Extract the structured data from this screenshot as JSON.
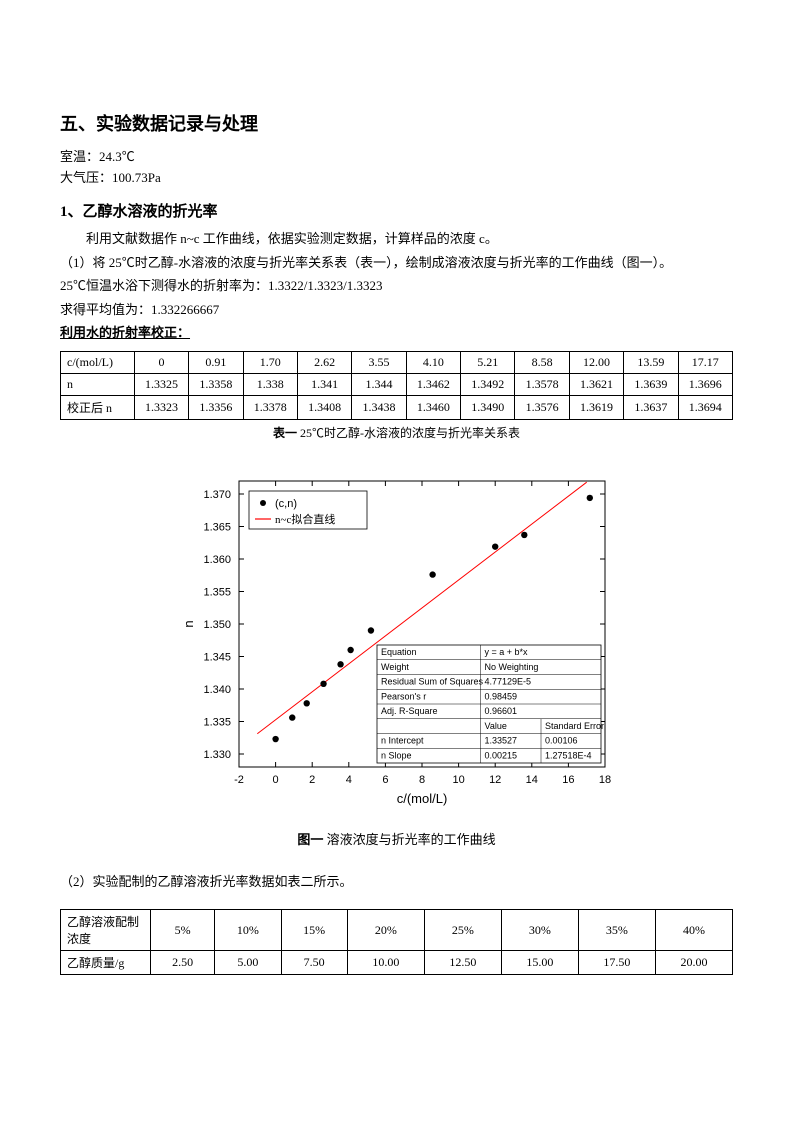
{
  "section_title": "五、实验数据记录与处理",
  "meta": {
    "room_temp_label": "室温：24.3℃",
    "pressure_label": "大气压：100.73Pa"
  },
  "sub1_title": "1、乙醇水溶液的折光率",
  "para1": "利用文献数据作 n~c 工作曲线，依据实验测定数据，计算样品的浓度 c。",
  "para2": "（1）将 25℃时乙醇-水溶液的浓度与折光率关系表（表一），绘制成溶液浓度与折光率的工作曲线（图一）。",
  "para3": "25℃恒温水浴下测得水的折射率为：1.3322/1.3323/1.3323",
  "para4": "求得平均值为：1.332266667",
  "para5": "利用水的折射率校正：",
  "table1": {
    "headers": [
      "c/(mol/L)",
      "0",
      "0.91",
      "1.70",
      "2.62",
      "3.55",
      "4.10",
      "5.21",
      "8.58",
      "12.00",
      "13.59",
      "17.17"
    ],
    "rows": [
      [
        "n",
        "1.3325",
        "1.3358",
        "1.338",
        "1.341",
        "1.344",
        "1.3462",
        "1.3492",
        "1.3578",
        "1.3621",
        "1.3639",
        "1.3696"
      ],
      [
        "校正后 n",
        "1.3323",
        "1.3356",
        "1.3378",
        "1.3408",
        "1.3438",
        "1.3460",
        "1.3490",
        "1.3576",
        "1.3619",
        "1.3637",
        "1.3694"
      ]
    ],
    "caption_bold": "表一",
    "caption_rest": " 25℃时乙醇-水溶液的浓度与折光率关系表"
  },
  "chart": {
    "type": "scatter",
    "x": [
      0,
      0.91,
      1.7,
      2.62,
      3.55,
      4.1,
      5.21,
      8.58,
      12.0,
      13.59,
      17.17
    ],
    "y": [
      1.3323,
      1.3356,
      1.3378,
      1.3408,
      1.3438,
      1.346,
      1.349,
      1.3576,
      1.3619,
      1.3637,
      1.3694
    ],
    "xlim": [
      -2,
      18
    ],
    "ylim": [
      1.328,
      1.372
    ],
    "xticks": [
      -2,
      0,
      2,
      4,
      6,
      8,
      10,
      12,
      14,
      16,
      18
    ],
    "yticks": [
      1.33,
      1.335,
      1.34,
      1.345,
      1.35,
      1.355,
      1.36,
      1.365,
      1.37
    ],
    "xlabel": "c/(mol/L)",
    "ylabel": "n",
    "marker_color": "#000000",
    "marker_size": 3.2,
    "line_color": "#ff0000",
    "fit_intercept": 1.33527,
    "fit_slope": 0.00215,
    "background_color": "#ffffff",
    "tick_fontsize": 11,
    "label_fontsize": 13,
    "legend": {
      "items": [
        {
          "marker": "dot",
          "label": "(c,n)"
        },
        {
          "marker": "line",
          "label": "n~c拟合直线",
          "color": "#ff0000"
        }
      ]
    },
    "stats_box": {
      "rows": [
        [
          "Equation",
          "y = a + b*x",
          ""
        ],
        [
          "Weight",
          "No Weighting",
          ""
        ],
        [
          "Residual Sum of Squares",
          "4.77129E-5",
          ""
        ],
        [
          "Pearson's r",
          "0.98459",
          ""
        ],
        [
          "Adj. R-Square",
          "0.96601",
          ""
        ],
        [
          "",
          "Value",
          "Standard Error"
        ],
        [
          "n     Intercept",
          "1.33527",
          "0.00106"
        ],
        [
          "n     Slope",
          "0.00215",
          "1.27518E-4"
        ]
      ]
    }
  },
  "fig1_caption_bold": "图一",
  "fig1_caption_rest": " 溶液浓度与折光率的工作曲线",
  "para6": "（2）实验配制的乙醇溶液折光率数据如表二所示。",
  "table2": {
    "rows": [
      [
        "乙醇溶液配制浓度",
        "5%",
        "10%",
        "15%",
        "20%",
        "25%",
        "30%",
        "35%",
        "40%"
      ],
      [
        "乙醇质量/g",
        "2.50",
        "5.00",
        "7.50",
        "10.00",
        "12.50",
        "15.00",
        "17.50",
        "20.00"
      ]
    ]
  }
}
